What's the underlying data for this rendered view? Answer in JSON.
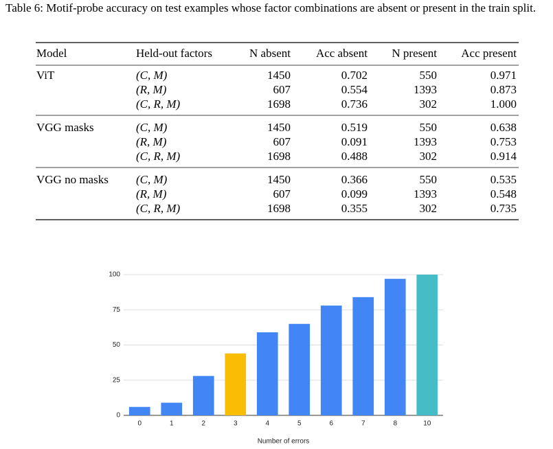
{
  "caption": "Table 6: Motif-probe accuracy on test examples whose factor combinations are absent or present in the train split.",
  "table": {
    "header": [
      "Model",
      "Held-out factors",
      "N absent",
      "Acc absent",
      "N present",
      "Acc present"
    ],
    "groups": [
      {
        "model": "ViT",
        "rows": [
          [
            "(C, M)",
            "1450",
            "0.702",
            "550",
            "0.971"
          ],
          [
            "(R, M)",
            "607",
            "0.554",
            "1393",
            "0.873"
          ],
          [
            "(C, R, M)",
            "1698",
            "0.736",
            "302",
            "1.000"
          ]
        ]
      },
      {
        "model": "VGG masks",
        "rows": [
          [
            "(C, M)",
            "1450",
            "0.519",
            "550",
            "0.638"
          ],
          [
            "(R, M)",
            "607",
            "0.091",
            "1393",
            "0.753"
          ],
          [
            "(C, R, M)",
            "1698",
            "0.488",
            "302",
            "0.914"
          ]
        ]
      },
      {
        "model": "VGG no masks",
        "rows": [
          [
            "(C, M)",
            "1450",
            "0.366",
            "550",
            "0.535"
          ],
          [
            "(R, M)",
            "607",
            "0.099",
            "1393",
            "0.548"
          ],
          [
            "(C, R, M)",
            "1698",
            "0.355",
            "302",
            "0.735"
          ]
        ]
      }
    ]
  },
  "chart_data": {
    "type": "bar",
    "x_label": "Number of errors",
    "categories": [
      "0",
      "1",
      "2",
      "3",
      "4",
      "5",
      "6",
      "7",
      "8",
      "10"
    ],
    "values": [
      6,
      9,
      28,
      44,
      59,
      65,
      78,
      84,
      97,
      100
    ],
    "colors": [
      "#4285f4",
      "#4285f4",
      "#4285f4",
      "#fbbc04",
      "#4285f4",
      "#4285f4",
      "#4285f4",
      "#4285f4",
      "#4285f4",
      "#46bdc6"
    ],
    "ylim": [
      0,
      100
    ],
    "yticks": [
      0,
      25,
      50,
      75,
      100
    ],
    "grid": true
  }
}
